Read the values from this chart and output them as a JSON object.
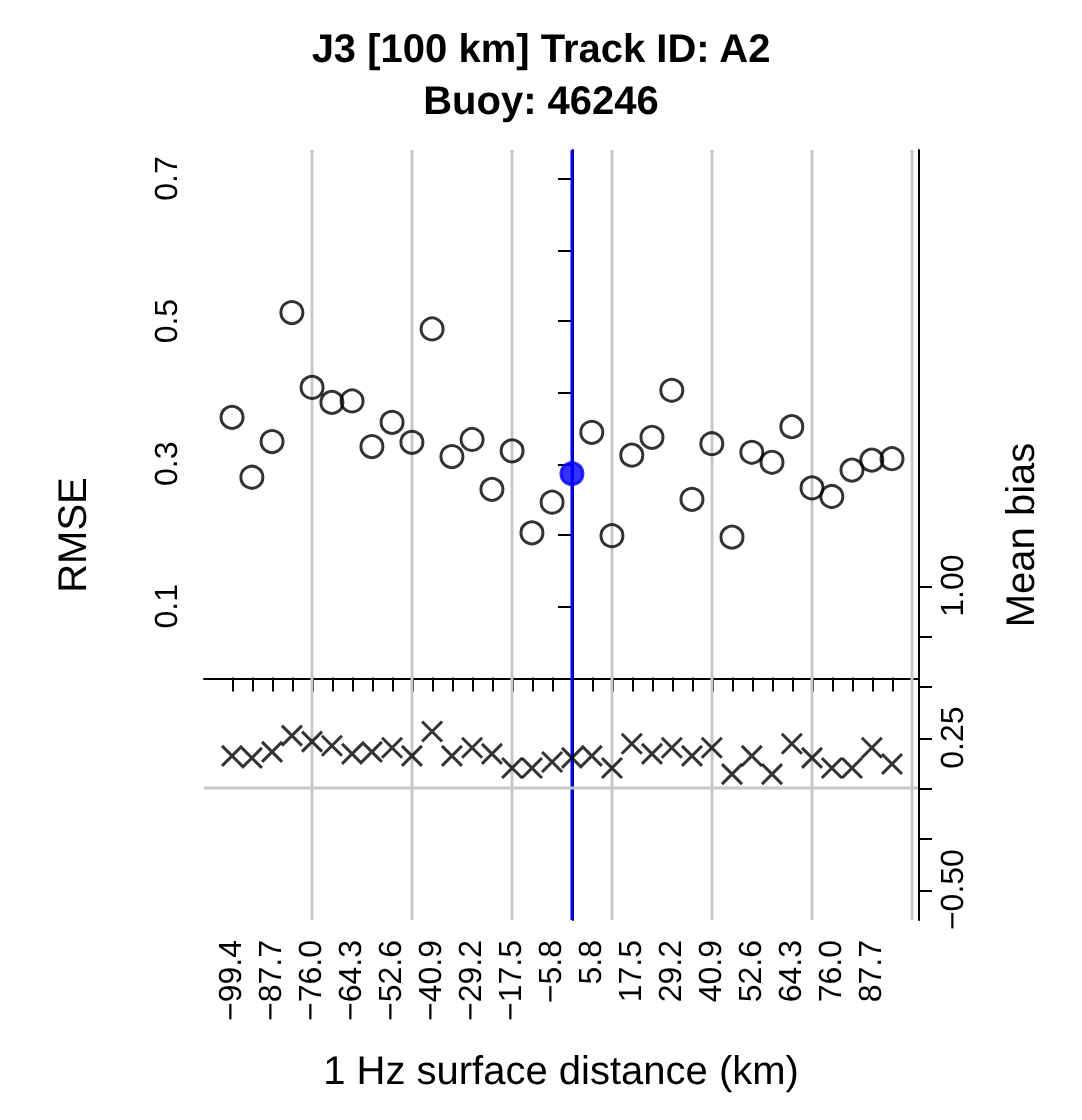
{
  "chart_data": {
    "type": "scatter",
    "title": "J3 [100 km] Track ID: A2",
    "subtitle": "Buoy: 46246",
    "xlabel": "1 Hz surface distance (km)",
    "ylabel": "RMSE",
    "y2label": "Mean bias",
    "x": [
      -99.4,
      -93.6,
      -87.7,
      -81.9,
      -76.0,
      -70.2,
      -64.3,
      -58.5,
      -52.6,
      -46.8,
      -40.9,
      -35.1,
      -29.2,
      -23.4,
      -17.5,
      -11.7,
      -5.8,
      0.0,
      5.8,
      11.7,
      17.5,
      23.4,
      29.2,
      35.1,
      40.9,
      46.8,
      52.6,
      58.5,
      64.3,
      70.2,
      76.0,
      81.9,
      87.7,
      93.6
    ],
    "series": [
      {
        "color": "#000000",
        "marker": "circle",
        "colors": [
          "#000000",
          "#000000",
          "#000000",
          "#000000",
          "#000000",
          "#000000",
          "#000000",
          "#000000",
          "#000000",
          "#000000",
          "#000000",
          "#000000",
          "#000000",
          "#000000",
          "#000000",
          "#000000",
          "#000000",
          "#0000ff",
          "#000000",
          "#000000",
          "#000000",
          "#000000",
          "#000000",
          "#000000",
          "#000000",
          "#000000",
          "#000000",
          "#000000",
          "#000000",
          "#000000",
          "#000000",
          "#000000",
          "#000000",
          "#000000"
        ],
        "values": [
          0.365,
          0.281,
          0.331,
          0.512,
          0.407,
          0.386,
          0.388,
          0.324,
          0.358,
          0.33,
          0.489,
          0.31,
          0.334,
          0.264,
          0.318,
          0.203,
          0.246,
          0.286,
          0.344,
          0.199,
          0.312,
          0.337,
          0.403,
          0.25,
          0.328,
          0.197,
          0.316,
          0.302,
          0.352,
          0.266,
          0.254,
          0.291,
          0.305,
          0.307
        ]
      },
      {
        "color": "#000000",
        "marker": "cross",
        "axis": "y2",
        "values": [
          0.16,
          0.15,
          0.18,
          0.26,
          0.23,
          0.21,
          0.17,
          0.18,
          0.2,
          0.16,
          0.28,
          0.16,
          0.2,
          0.17,
          0.1,
          0.1,
          0.13,
          0.15,
          0.16,
          0.1,
          0.22,
          0.17,
          0.2,
          0.16,
          0.2,
          0.07,
          0.16,
          0.07,
          0.22,
          0.15,
          0.1,
          0.1,
          0.2,
          0.12
        ]
      }
    ],
    "xlim": [
      -107.6,
      101.2
    ],
    "xticks": [
      {
        "value": -99.4,
        "label": "−99.4"
      },
      {
        "value": -93.6,
        "label": null
      },
      {
        "value": -87.7,
        "label": "−87.7"
      },
      {
        "value": -81.9,
        "label": null
      },
      {
        "value": -76.0,
        "label": "−76.0"
      },
      {
        "value": -70.2,
        "label": null
      },
      {
        "value": -64.3,
        "label": "−64.3"
      },
      {
        "value": -58.5,
        "label": null
      },
      {
        "value": -52.6,
        "label": "−52.6"
      },
      {
        "value": -46.8,
        "label": null
      },
      {
        "value": -40.9,
        "label": "−40.9"
      },
      {
        "value": -35.1,
        "label": null
      },
      {
        "value": -29.2,
        "label": "−29.2"
      },
      {
        "value": -23.4,
        "label": null
      },
      {
        "value": -17.5,
        "label": "−17.5"
      },
      {
        "value": -11.7,
        "label": null
      },
      {
        "value": -5.8,
        "label": "−5.8"
      },
      {
        "value": 0.0,
        "label": null
      },
      {
        "value": 5.8,
        "label": "5.8"
      },
      {
        "value": 11.7,
        "label": null
      },
      {
        "value": 17.5,
        "label": "17.5"
      },
      {
        "value": 23.4,
        "label": null
      },
      {
        "value": 29.2,
        "label": "29.2"
      },
      {
        "value": 35.1,
        "label": null
      },
      {
        "value": 40.9,
        "label": "40.9"
      },
      {
        "value": 46.8,
        "label": null
      },
      {
        "value": 52.6,
        "label": "52.6"
      },
      {
        "value": 58.5,
        "label": null
      },
      {
        "value": 64.3,
        "label": "64.3"
      },
      {
        "value": 70.2,
        "label": null
      },
      {
        "value": 76.0,
        "label": "76.0"
      },
      {
        "value": 81.9,
        "label": null
      },
      {
        "value": 87.7,
        "label": "87.7"
      },
      {
        "value": 93.6,
        "label": null
      }
    ],
    "ylim": [
      -0.34,
      0.74
    ],
    "yticks": [
      0.1,
      {
        "value": 0.2,
        "label": null
      },
      0.3,
      {
        "value": 0.4,
        "label": null
      },
      0.5,
      {
        "value": 0.6,
        "label": null
      },
      0.7
    ],
    "y2lim": [
      -0.65,
      3.15
    ],
    "y2ticks": [
      {
        "value": -0.5,
        "label": "−0.50"
      },
      {
        "value": -0.25,
        "label": null
      },
      {
        "value": 0,
        "label": null
      },
      {
        "value": 0.25,
        "label": "0.25"
      },
      {
        "value": 0.5,
        "label": null
      },
      {
        "value": 0.75,
        "label": null
      },
      {
        "value": 1,
        "label": "1.00"
      }
    ],
    "ref_lines": [
      {
        "axis": "x",
        "value": -76.0,
        "color": "#c8c8c8"
      },
      {
        "axis": "x",
        "value": -46.8,
        "color": "#c8c8c8"
      },
      {
        "axis": "x",
        "value": -17.5,
        "color": "#c8c8c8"
      },
      {
        "axis": "x",
        "value": 11.7,
        "color": "#c8c8c8"
      },
      {
        "axis": "x",
        "value": 41.0,
        "color": "#c8c8c8"
      },
      {
        "axis": "x",
        "value": 70.2,
        "color": "#c8c8c8"
      },
      {
        "axis": "x",
        "value": 99.5,
        "color": "#c8c8c8"
      },
      {
        "axis": "y2",
        "value": 0,
        "color": "#c8c8c8"
      },
      {
        "axis": "x",
        "value": 0,
        "color": "#0000ff"
      }
    ],
    "grid": false
  }
}
